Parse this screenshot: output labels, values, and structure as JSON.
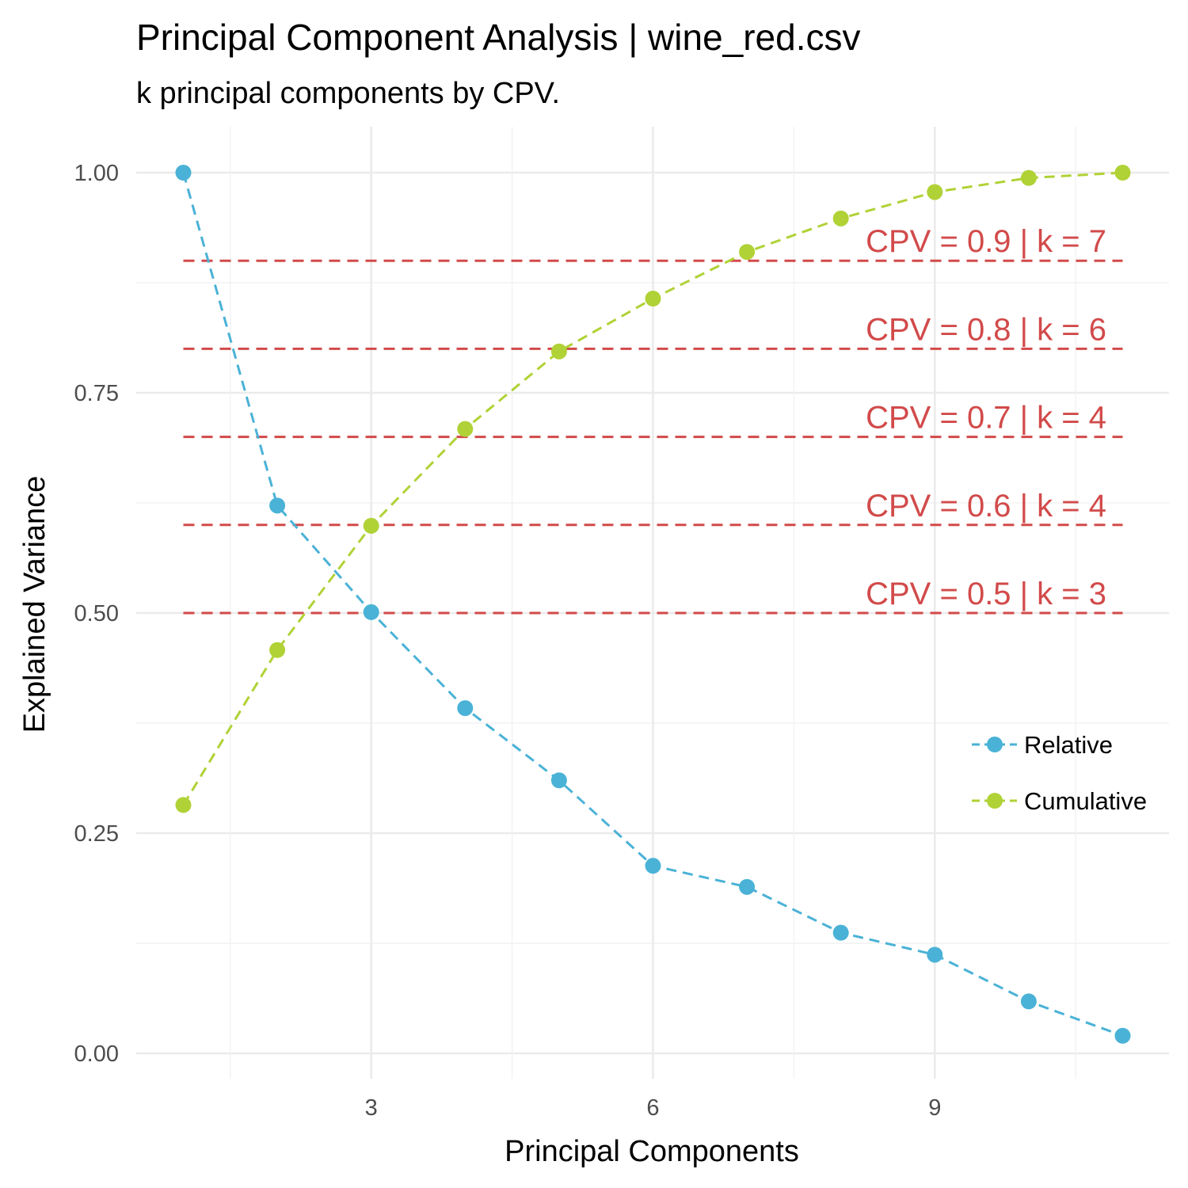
{
  "chart_data": {
    "type": "line",
    "title": "Principal Component Analysis | wine_red.csv",
    "subtitle": "k principal components by CPV.",
    "xlabel": "Principal Components",
    "ylabel": "Explained Variance",
    "xlim": [
      1,
      11
    ],
    "ylim": [
      0,
      1
    ],
    "x_ticks": [
      3,
      6,
      9
    ],
    "x_tick_labels": [
      "3",
      "6",
      "9"
    ],
    "y_ticks": [
      0,
      0.25,
      0.5,
      0.75,
      1
    ],
    "y_tick_labels": [
      "0.00",
      "0.25",
      "0.50",
      "0.75",
      "1.00"
    ],
    "grid": true,
    "legend_position": "right",
    "x": [
      1,
      2,
      3,
      4,
      5,
      6,
      7,
      8,
      9,
      10,
      11
    ],
    "series": [
      {
        "name": "Relative",
        "color": "#4ab2d6",
        "values": [
          1.0,
          0.622,
          0.501,
          0.392,
          0.31,
          0.213,
          0.189,
          0.137,
          0.112,
          0.059,
          0.02
        ]
      },
      {
        "name": "Cumulative",
        "color": "#b0d236",
        "values": [
          0.282,
          0.458,
          0.599,
          0.709,
          0.797,
          0.857,
          0.91,
          0.948,
          0.978,
          0.994,
          1.0
        ]
      }
    ],
    "reference_lines": [
      {
        "y": 0.9,
        "label": "CPV = 0.9 | k = 7"
      },
      {
        "y": 0.8,
        "label": "CPV = 0.8 | k = 6"
      },
      {
        "y": 0.7,
        "label": "CPV = 0.7 | k = 4"
      },
      {
        "y": 0.6,
        "label": "CPV = 0.6 | k = 4"
      },
      {
        "y": 0.5,
        "label": "CPV = 0.5 | k = 3"
      }
    ],
    "reference_color": "#d24a4a"
  }
}
